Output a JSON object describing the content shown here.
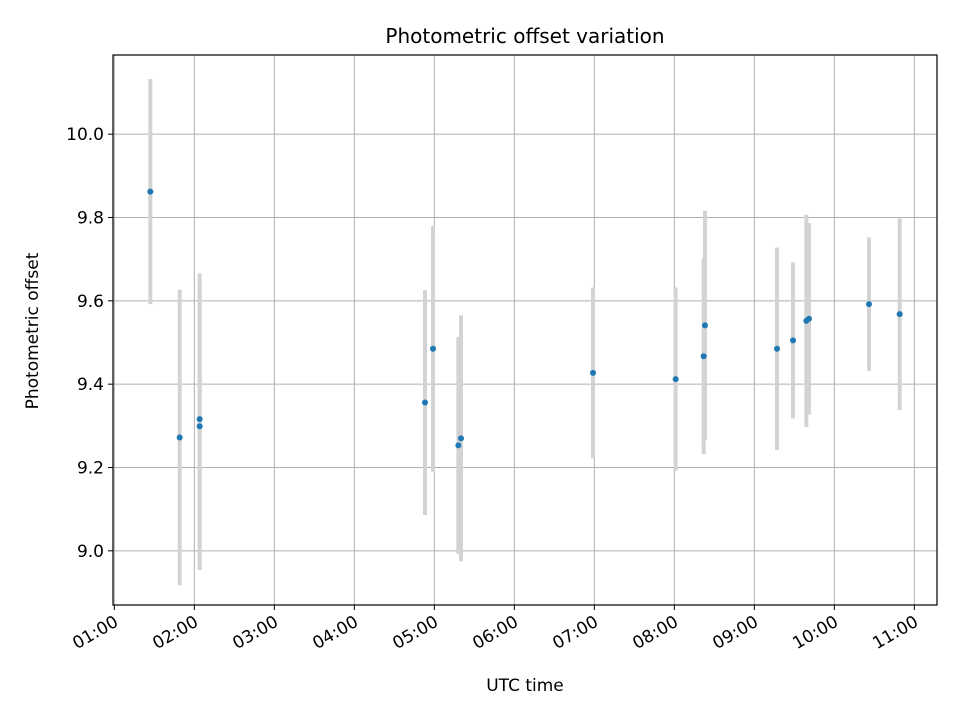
{
  "chart_data": {
    "type": "scatter",
    "title": "Photometric offset variation",
    "xlabel": "UTC time",
    "ylabel": "Photometric offset",
    "xlim": [
      "00:59",
      "11:17"
    ],
    "ylim": [
      8.87,
      10.19
    ],
    "x_ticks": [
      "01:00",
      "02:00",
      "03:00",
      "04:00",
      "05:00",
      "06:00",
      "07:00",
      "08:00",
      "09:00",
      "10:00",
      "11:00"
    ],
    "y_ticks": [
      9.0,
      9.2,
      9.4,
      9.6,
      9.8,
      10.0
    ],
    "y_tick_labels": [
      "9.0",
      "9.2",
      "9.4",
      "9.6",
      "9.8",
      "10.0"
    ],
    "grid": true,
    "point_color": "#1f77b4",
    "errorbar_color": "#d3d3d3",
    "series": [
      {
        "points": [
          {
            "x": "01:27",
            "y": 9.862,
            "err": 0.27
          },
          {
            "x": "01:49",
            "y": 9.272,
            "err": 0.355
          },
          {
            "x": "02:04",
            "y": 9.316,
            "err": 0.35
          },
          {
            "x": "02:04",
            "y": 9.299,
            "err": 0.345
          },
          {
            "x": "04:53",
            "y": 9.356,
            "err": 0.27
          },
          {
            "x": "04:59",
            "y": 9.485,
            "err": 0.295
          },
          {
            "x": "05:18",
            "y": 9.253,
            "err": 0.26
          },
          {
            "x": "05:20",
            "y": 9.27,
            "err": 0.295
          },
          {
            "x": "06:59",
            "y": 9.427,
            "err": 0.205
          },
          {
            "x": "08:01",
            "y": 9.412,
            "err": 0.22
          },
          {
            "x": "08:22",
            "y": 9.467,
            "err": 0.235
          },
          {
            "x": "08:23",
            "y": 9.541,
            "err": 0.275
          },
          {
            "x": "09:17",
            "y": 9.485,
            "err": 0.243
          },
          {
            "x": "09:29",
            "y": 9.505,
            "err": 0.187
          },
          {
            "x": "09:39",
            "y": 9.552,
            "err": 0.255
          },
          {
            "x": "09:41",
            "y": 9.557,
            "err": 0.23
          },
          {
            "x": "10:26",
            "y": 9.592,
            "err": 0.16
          },
          {
            "x": "10:49",
            "y": 9.568,
            "err": 0.23
          }
        ]
      }
    ]
  }
}
